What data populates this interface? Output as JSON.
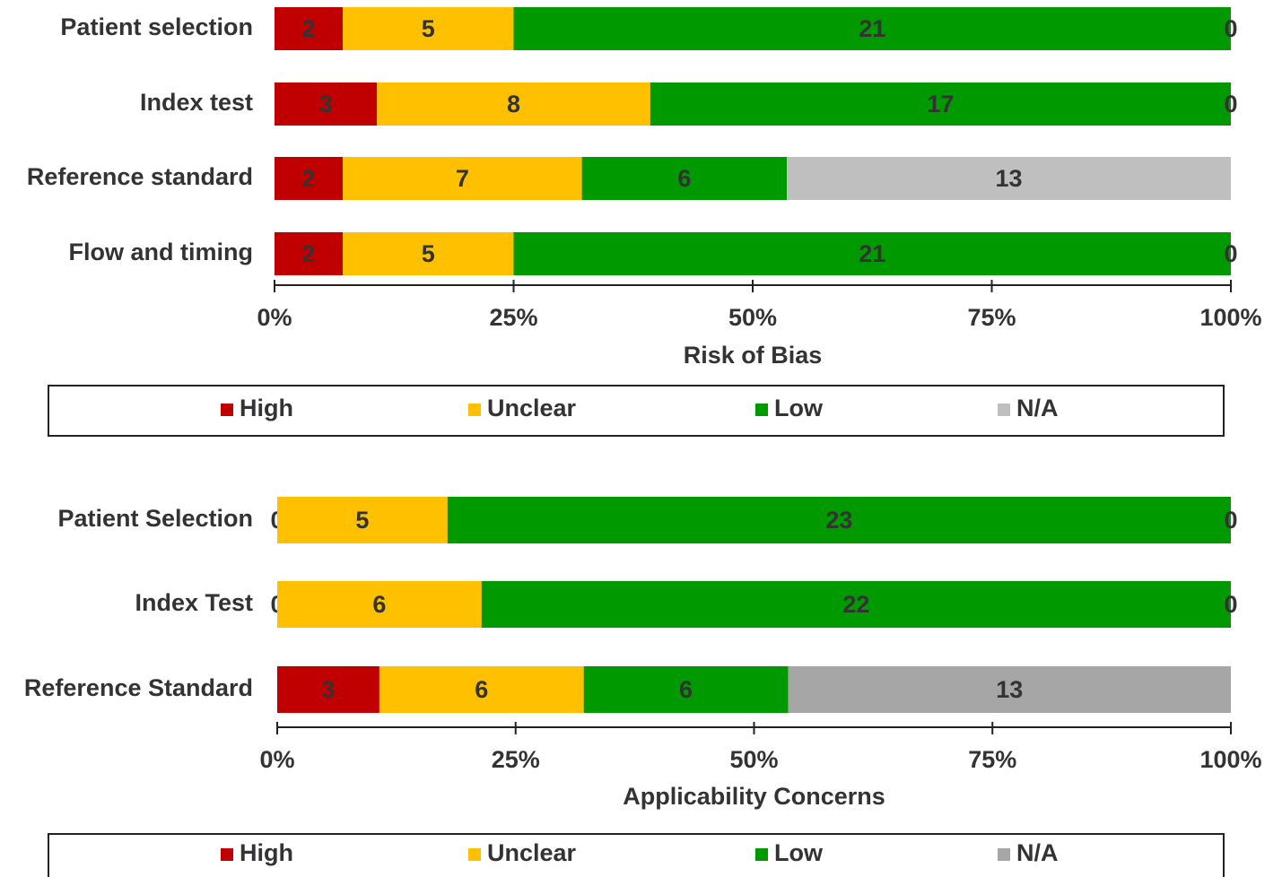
{
  "chart_data": [
    {
      "type": "bar",
      "orientation": "horizontal",
      "stacking": "percent",
      "xlabel": "Risk of Bias",
      "categories": [
        "Patient selection",
        "Index test",
        "Reference standard",
        "Flow and timing"
      ],
      "series": [
        {
          "name": "High",
          "color": "#c00000",
          "values": [
            2,
            3,
            2,
            2
          ]
        },
        {
          "name": "Unclear",
          "color": "#ffc000",
          "values": [
            5,
            8,
            7,
            5
          ]
        },
        {
          "name": "Low",
          "color": "#009900",
          "values": [
            21,
            17,
            6,
            21
          ]
        },
        {
          "name": "N/A",
          "color": "#bfbfbf",
          "values": [
            0,
            0,
            13,
            0
          ]
        }
      ],
      "xlim": [
        0,
        100
      ],
      "xticks": [
        {
          "value": 0,
          "label": "0%"
        },
        {
          "value": 25,
          "label": "25%"
        },
        {
          "value": 50,
          "label": "50%"
        },
        {
          "value": 75,
          "label": "75%"
        },
        {
          "value": 100,
          "label": "100%"
        }
      ],
      "legend": "bottom"
    },
    {
      "type": "bar",
      "orientation": "horizontal",
      "stacking": "percent",
      "xlabel": "Applicability  Concerns",
      "categories": [
        "Patient Selection",
        "Index Test",
        "Reference Standard"
      ],
      "series": [
        {
          "name": "High",
          "color": "#c00000",
          "values": [
            0,
            0,
            3
          ]
        },
        {
          "name": "Unclear",
          "color": "#ffc000",
          "values": [
            5,
            6,
            6
          ]
        },
        {
          "name": "Low",
          "color": "#009900",
          "values": [
            23,
            22,
            6
          ]
        },
        {
          "name": "N/A",
          "color": "#a6a6a6",
          "values": [
            0,
            0,
            13
          ]
        }
      ],
      "xlim": [
        0,
        100
      ],
      "xticks": [
        {
          "value": 0,
          "label": "0%"
        },
        {
          "value": 25,
          "label": "25%"
        },
        {
          "value": 50,
          "label": "50%"
        },
        {
          "value": 75,
          "label": "75%"
        },
        {
          "value": 100,
          "label": "100%"
        }
      ],
      "legend": "bottom"
    }
  ]
}
